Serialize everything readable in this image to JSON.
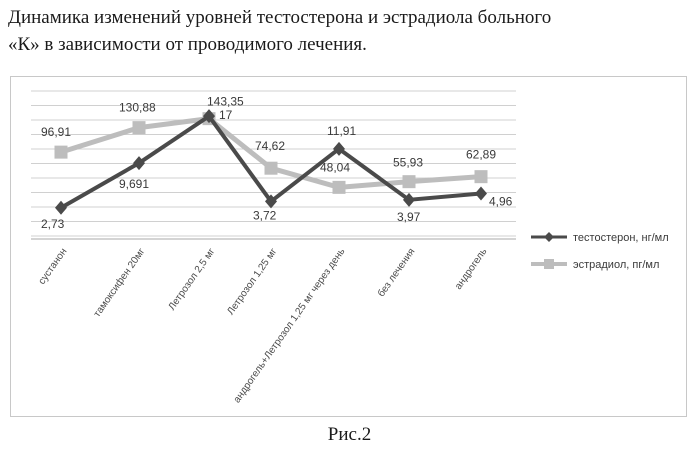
{
  "heading": {
    "line1": "Динамика изменений уровней тестостерона и эстрадиола больного",
    "line2": "«К» в зависимости от проводимого лечения."
  },
  "caption": "Рис.2",
  "chart_data": {
    "type": "line",
    "title": "",
    "xlabel": "",
    "ylabel": "",
    "grid": true,
    "legend_position": "right",
    "categories": [
      "сустанон",
      "тамоксифен 20мг",
      "Летрозол 2,5 мг",
      "Летрозол 1,25 мг",
      "андрогель+Летрозол 1,25 мг через день",
      "без лечения",
      "андрогель"
    ],
    "series": [
      {
        "name": "тестостерон, нг/мл",
        "color": "#4a4a4a",
        "marker": "diamond",
        "values": [
          2.73,
          9.691,
          17,
          3.72,
          11.91,
          3.97,
          4.96
        ],
        "labels": [
          "2,73",
          "9,691",
          "17",
          "3,72",
          "11,91",
          "3,97",
          "4,96"
        ]
      },
      {
        "name": "эстрадиол, пг/мл",
        "color": "#bdbdbd",
        "marker": "square",
        "values": [
          96.91,
          130.88,
          143.35,
          74.62,
          48.04,
          55.93,
          62.89
        ],
        "labels": [
          "96,91",
          "130,88",
          "143,35",
          "74,62",
          "48,04",
          "55,93",
          "62,89"
        ]
      }
    ]
  }
}
